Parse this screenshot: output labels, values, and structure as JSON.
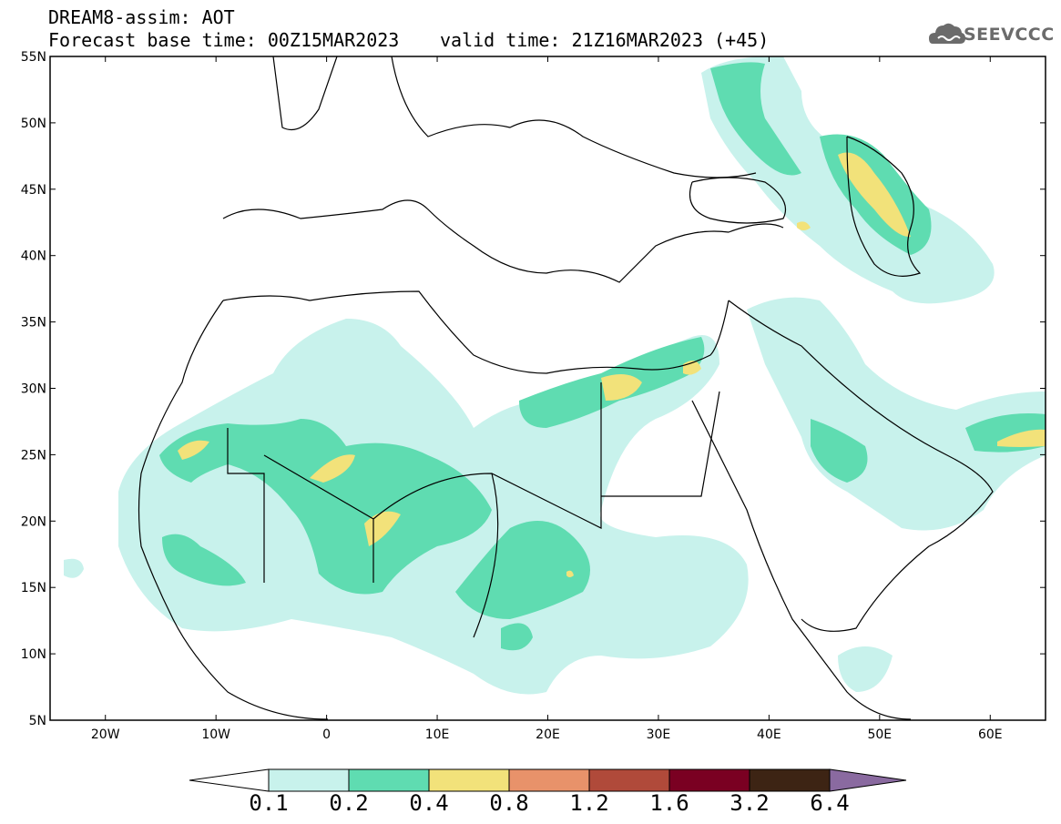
{
  "header": {
    "model_line": "DREAM8-assim: AOT",
    "base_time_line": "Forecast base time: 00Z15MAR2023",
    "valid_time_line": "valid time: 21Z16MAR2023 (+45)",
    "logo_text": "SEEVCCC"
  },
  "map": {
    "lat_labels": [
      "55N",
      "50N",
      "45N",
      "40N",
      "35N",
      "30N",
      "25N",
      "20N",
      "15N",
      "10N",
      "5N"
    ],
    "lat_values": [
      55,
      50,
      45,
      40,
      35,
      30,
      25,
      20,
      15,
      10,
      5
    ],
    "lon_labels": [
      "20W",
      "10W",
      "0",
      "10E",
      "20E",
      "30E",
      "40E",
      "50E",
      "60E"
    ],
    "lon_values": [
      -20,
      -10,
      0,
      10,
      20,
      30,
      40,
      50,
      60
    ],
    "extent": {
      "lon_min": -25,
      "lon_max": 65,
      "lat_min": 5,
      "lat_max": 55
    }
  },
  "colorbar": {
    "labels": [
      "0.1",
      "0.2",
      "0.4",
      "0.8",
      "1.2",
      "1.6",
      "3.2",
      "6.4"
    ],
    "colors": [
      "#ffffff",
      "#c8f2ec",
      "#5fdcb1",
      "#f2e27a",
      "#e8926a",
      "#b04a3a",
      "#7a0022",
      "#3d2414",
      "#8a6aa0"
    ]
  },
  "colors": {
    "aot_0_1": "#c8f2ec",
    "aot_0_2": "#5fdcb1",
    "aot_0_4": "#f2e27a"
  }
}
